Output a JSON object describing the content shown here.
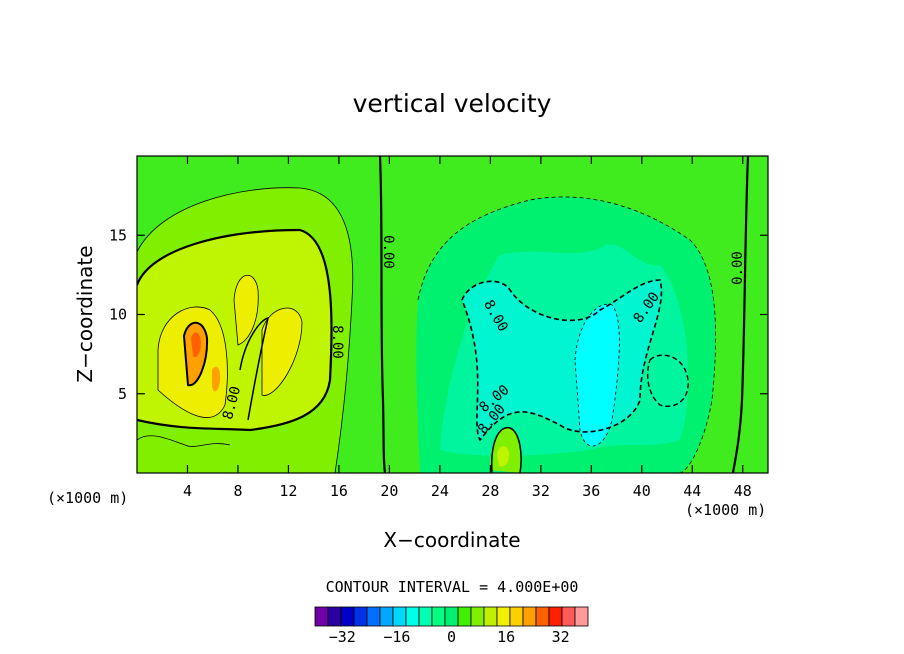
{
  "chart_data": {
    "type": "heatmap",
    "title": "vertical velocity",
    "xlabel": "X−coordinate",
    "ylabel": "Z−coordinate",
    "x_units": "(×1000 m)",
    "x_units_right": "(×1000 m)",
    "xlim": [
      0,
      50
    ],
    "ylim": [
      0,
      20
    ],
    "x_ticks": [
      4,
      8,
      12,
      16,
      20,
      24,
      28,
      32,
      36,
      40,
      44,
      48
    ],
    "y_ticks": [
      5,
      10,
      15
    ],
    "contour_interval_text": "CONTOUR INTERVAL = 4.000E+00",
    "contour_labels": [
      {
        "text": "0.00",
        "x": 19.6,
        "z": 14
      },
      {
        "text": "0.00",
        "x": 47,
        "z": 13
      },
      {
        "text": "8.00",
        "x": 15.7,
        "z": 8.3
      },
      {
        "text": "8.00",
        "x": 7.9,
        "z": 4
      },
      {
        "text": "8.00",
        "x": 28.2,
        "z": 9.6
      },
      {
        "text": "8.00",
        "x": 28.2,
        "z": 4
      },
      {
        "text": "8.00",
        "x": 28.6,
        "z": 2.8
      },
      {
        "text": "8.00",
        "x": 40.8,
        "z": 10.3
      }
    ],
    "colorbar": {
      "levels": [
        -40,
        -36,
        -32,
        -28,
        -24,
        -20,
        -16,
        -12,
        -8,
        -4,
        0,
        4,
        8,
        12,
        16,
        20,
        24,
        28,
        32,
        36,
        40
      ],
      "colors": [
        "#7000a8",
        "#2a00a0",
        "#0000c8",
        "#0030e8",
        "#0070ff",
        "#00a8ff",
        "#00d8ff",
        "#00ffe8",
        "#00ffb0",
        "#00ff80",
        "#00f070",
        "#40f000",
        "#80f000",
        "#c0f000",
        "#f0f000",
        "#ffd000",
        "#ffa000",
        "#ff6000",
        "#ff2000",
        "#ff5a5a",
        "#ff9a9a"
      ],
      "tick_labels": [
        "−32",
        "−16",
        "0",
        "16",
        "32"
      ],
      "tick_values": [
        -32,
        -16,
        0,
        16,
        32
      ]
    },
    "colors": {
      "background_field": "#41ec1e",
      "updraft_1": "#80f000",
      "updraft_2": "#bff500",
      "updraft_3": "#eeee00",
      "updraft_4": "#ffa000",
      "downdraft_1": "#00f070",
      "downdraft_2": "#00f59e",
      "downdraft_3": "#00f5d0",
      "downdraft_4": "#00ffff"
    }
  }
}
